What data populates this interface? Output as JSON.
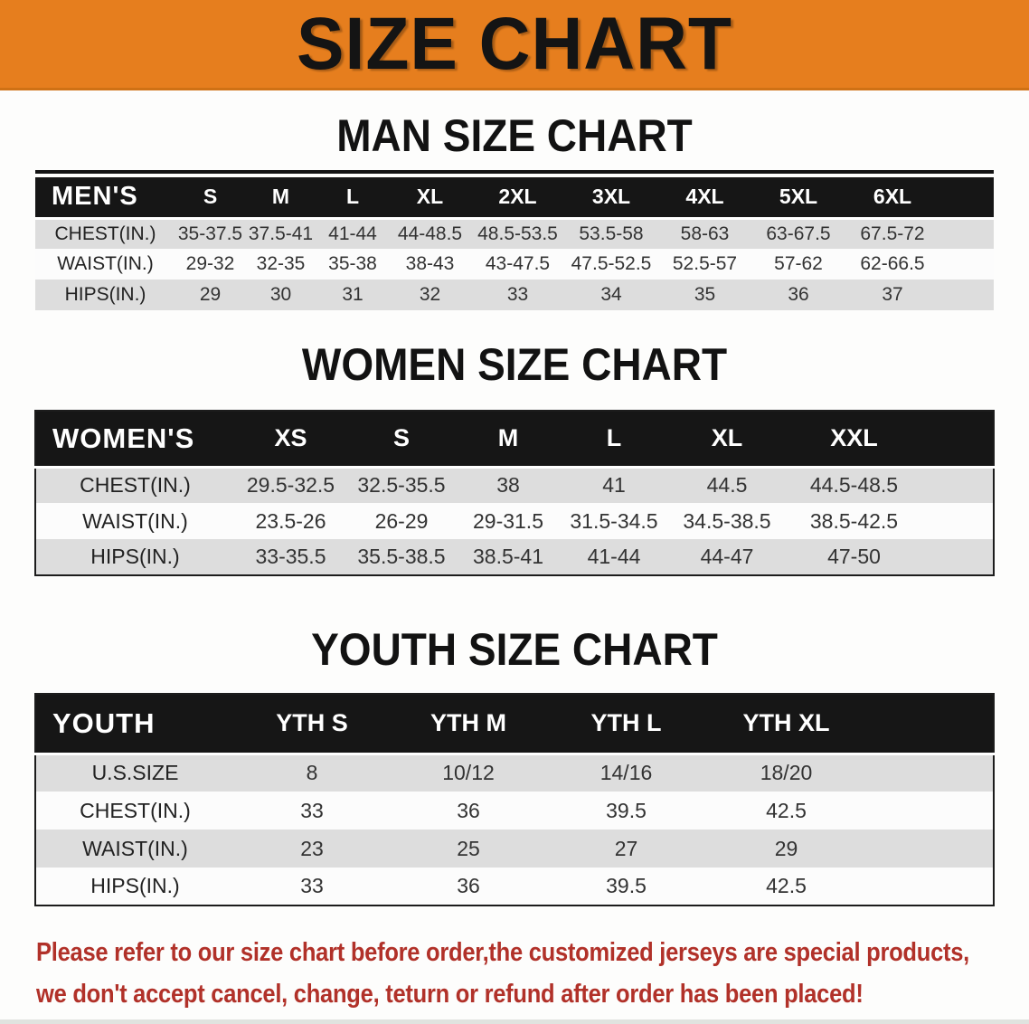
{
  "banner": {
    "title": "SIZE CHART"
  },
  "sections": [
    {
      "id": "men",
      "heading": "MAN SIZE CHART",
      "table": {
        "header": [
          "MEN'S",
          "S",
          "M",
          "L",
          "XL",
          "2XL",
          "3XL",
          "4XL",
          "5XL",
          "6XL"
        ],
        "rows": [
          {
            "label": "CHEST(IN.)",
            "values": [
              "35-37.5",
              "37.5-41",
              "41-44",
              "44-48.5",
              "48.5-53.5",
              "53.5-58",
              "58-63",
              "63-67.5",
              "67.5-72"
            ]
          },
          {
            "label": "WAIST(IN.)",
            "values": [
              "29-32",
              "32-35",
              "35-38",
              "38-43",
              "43-47.5",
              "47.5-52.5",
              "52.5-57",
              "57-62",
              "62-66.5"
            ]
          },
          {
            "label": "HIPS(IN.)",
            "values": [
              "29",
              "30",
              "31",
              "32",
              "33",
              "34",
              "35",
              "36",
              "37"
            ]
          }
        ]
      }
    },
    {
      "id": "women",
      "heading": "WOMEN SIZE CHART",
      "table": {
        "header": [
          "WOMEN'S",
          "XS",
          "S",
          "M",
          "L",
          "XL",
          "XXL"
        ],
        "rows": [
          {
            "label": "CHEST(IN.)",
            "values": [
              "29.5-32.5",
              "32.5-35.5",
              "38",
              "41",
              "44.5",
              "44.5-48.5"
            ]
          },
          {
            "label": "WAIST(IN.)",
            "values": [
              "23.5-26",
              "26-29",
              "29-31.5",
              "31.5-34.5",
              "34.5-38.5",
              "38.5-42.5"
            ]
          },
          {
            "label": "HIPS(IN.)",
            "values": [
              "33-35.5",
              "35.5-38.5",
              "38.5-41",
              "41-44",
              "44-47",
              "47-50"
            ]
          }
        ]
      }
    },
    {
      "id": "youth",
      "heading": "YOUTH SIZE CHART",
      "table": {
        "header": [
          "YOUTH",
          "YTH S",
          "YTH M",
          "YTH L",
          "YTH XL"
        ],
        "rows": [
          {
            "label": "U.S.SIZE",
            "values": [
              "8",
              "10/12",
              "14/16",
              "18/20"
            ]
          },
          {
            "label": "CHEST(IN.)",
            "values": [
              "33",
              "36",
              "39.5",
              "42.5"
            ]
          },
          {
            "label": "WAIST(IN.)",
            "values": [
              "23",
              "25",
              "27",
              "29"
            ]
          },
          {
            "label": "HIPS(IN.)",
            "values": [
              "33",
              "36",
              "39.5",
              "42.5"
            ]
          }
        ]
      }
    }
  ],
  "footer": {
    "line1": "Please refer to our size chart before order,the customized jerseys are special products,",
    "line2": "we don't accept cancel, change, teturn or refund after order has been placed!"
  },
  "colors": {
    "banner_orange": "#E67E1E",
    "header_black": "#161616",
    "row_gray": "#DDDDDD",
    "row_white": "#FCFCFC",
    "warning_red": "#B13129"
  }
}
